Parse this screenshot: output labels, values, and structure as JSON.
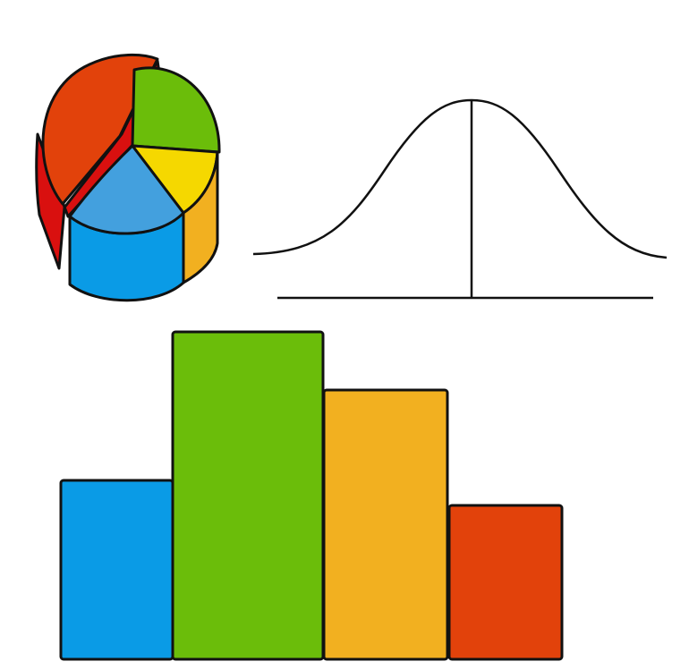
{
  "illustration": {
    "pie_colors": {
      "red_top": "#e2420b",
      "red_side": "#d9100f",
      "green": "#6bbd0a",
      "yellow": "#f5d800",
      "blue_top": "#43a0de",
      "blue_side": "#0a9be6",
      "orange_side": "#f2b020"
    },
    "bar_colors": [
      "#0a9be6",
      "#6bbd0a",
      "#f2b020",
      "#e2420b"
    ],
    "bar_relative_heights": [
      0.55,
      1.0,
      0.82,
      0.47
    ],
    "outline_color": "#111111"
  }
}
